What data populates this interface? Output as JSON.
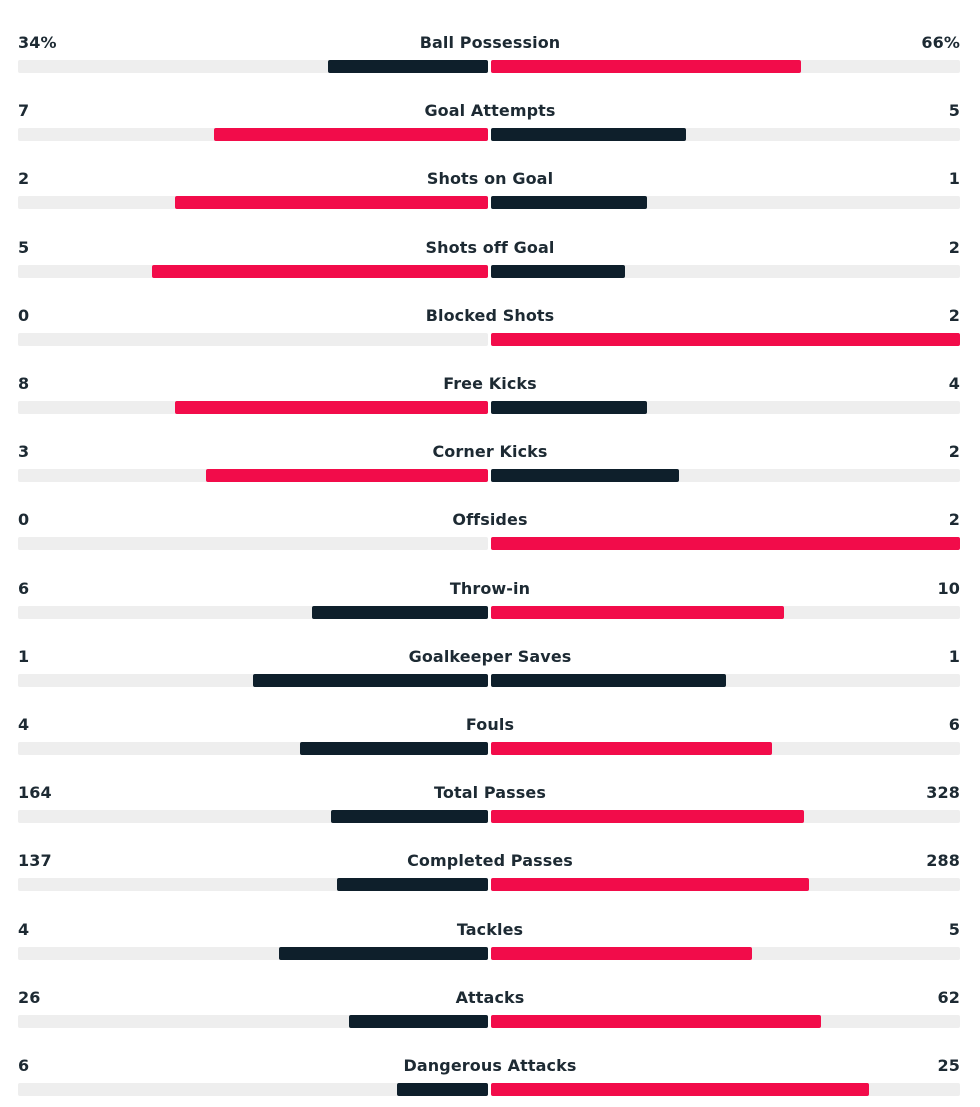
{
  "colors": {
    "leader": "#f20c4a",
    "trailer": "#0e1f2b",
    "track": "#eeeeee",
    "text": "#1d2a33"
  },
  "chart_data": {
    "type": "bar",
    "stats": [
      {
        "label": "Ball Possession",
        "home": "34%",
        "away": "66%",
        "home_value": 34,
        "away_value": 66
      },
      {
        "label": "Goal Attempts",
        "home": "7",
        "away": "5",
        "home_value": 7,
        "away_value": 5
      },
      {
        "label": "Shots on Goal",
        "home": "2",
        "away": "1",
        "home_value": 2,
        "away_value": 1
      },
      {
        "label": "Shots off Goal",
        "home": "5",
        "away": "2",
        "home_value": 5,
        "away_value": 2
      },
      {
        "label": "Blocked Shots",
        "home": "0",
        "away": "2",
        "home_value": 0,
        "away_value": 2
      },
      {
        "label": "Free Kicks",
        "home": "8",
        "away": "4",
        "home_value": 8,
        "away_value": 4
      },
      {
        "label": "Corner Kicks",
        "home": "3",
        "away": "2",
        "home_value": 3,
        "away_value": 2
      },
      {
        "label": "Offsides",
        "home": "0",
        "away": "2",
        "home_value": 0,
        "away_value": 2
      },
      {
        "label": "Throw-in",
        "home": "6",
        "away": "10",
        "home_value": 6,
        "away_value": 10
      },
      {
        "label": "Goalkeeper Saves",
        "home": "1",
        "away": "1",
        "home_value": 1,
        "away_value": 1
      },
      {
        "label": "Fouls",
        "home": "4",
        "away": "6",
        "home_value": 4,
        "away_value": 6
      },
      {
        "label": "Total Passes",
        "home": "164",
        "away": "328",
        "home_value": 164,
        "away_value": 328
      },
      {
        "label": "Completed Passes",
        "home": "137",
        "away": "288",
        "home_value": 137,
        "away_value": 288
      },
      {
        "label": "Tackles",
        "home": "4",
        "away": "5",
        "home_value": 4,
        "away_value": 5
      },
      {
        "label": "Attacks",
        "home": "26",
        "away": "62",
        "home_value": 26,
        "away_value": 62
      },
      {
        "label": "Dangerous Attacks",
        "home": "6",
        "away": "25",
        "home_value": 6,
        "away_value": 25
      }
    ]
  }
}
